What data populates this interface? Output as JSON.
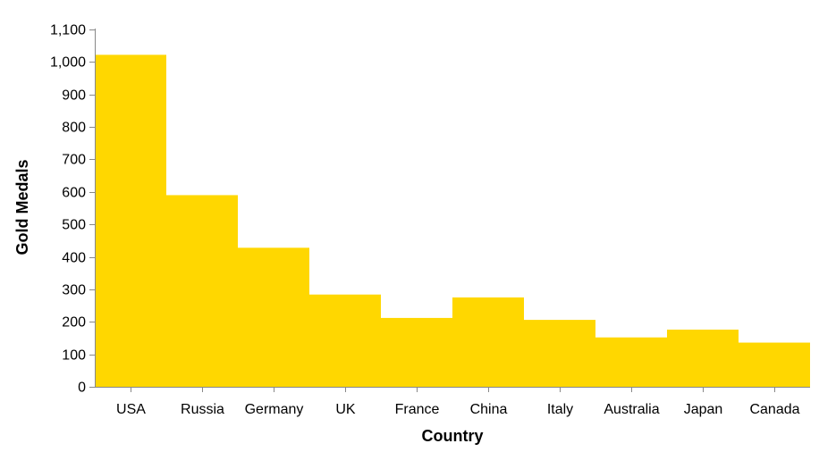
{
  "chart_data": {
    "type": "bar",
    "xlabel": "Country",
    "ylabel": "Gold Medals",
    "ylim": [
      0,
      1100
    ],
    "yticks": [
      0,
      100,
      200,
      300,
      400,
      500,
      600,
      700,
      800,
      900,
      1000,
      1100
    ],
    "ytick_labels": [
      "0",
      "100",
      "200",
      "300",
      "400",
      "500",
      "600",
      "700",
      "800",
      "900",
      "1,000",
      "1,100"
    ],
    "categories": [
      "USA",
      "Russia",
      "Germany",
      "UK",
      "France",
      "China",
      "Italy",
      "Australia",
      "Japan",
      "Canada"
    ],
    "values": [
      1022,
      590,
      428,
      284,
      212,
      275,
      206,
      152,
      176,
      136
    ],
    "bar_color": "#FFD700",
    "grid": false
  }
}
